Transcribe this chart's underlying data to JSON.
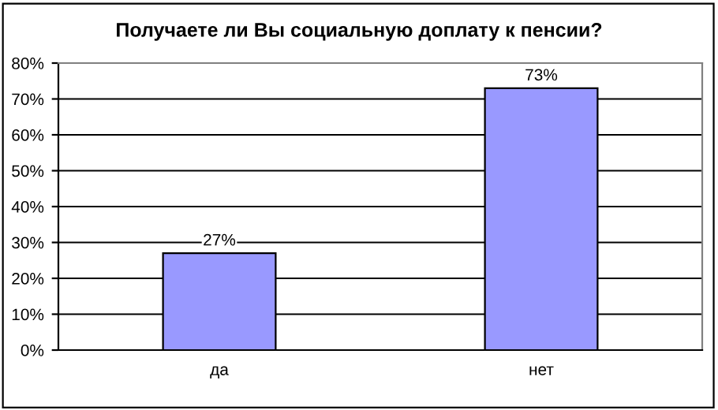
{
  "chart_data": {
    "type": "bar",
    "title": "Получаете ли Вы социальную доплату к пенсии?",
    "categories": [
      "да",
      "нет"
    ],
    "values": [
      27,
      73
    ],
    "color": "#9999ff",
    "value_labels": [
      "27%",
      "73%"
    ],
    "ylim": [
      0,
      80
    ],
    "yticks": [
      {
        "value": 0,
        "label": "0%"
      },
      {
        "value": 10,
        "label": "10%"
      },
      {
        "value": 20,
        "label": "20%"
      },
      {
        "value": 30,
        "label": "30%"
      },
      {
        "value": 40,
        "label": "40%"
      },
      {
        "value": 50,
        "label": "50%"
      },
      {
        "value": 60,
        "label": "60%"
      },
      {
        "value": 70,
        "label": "70%"
      },
      {
        "value": 80,
        "label": "80%"
      }
    ],
    "grid": "y",
    "legend": false
  }
}
